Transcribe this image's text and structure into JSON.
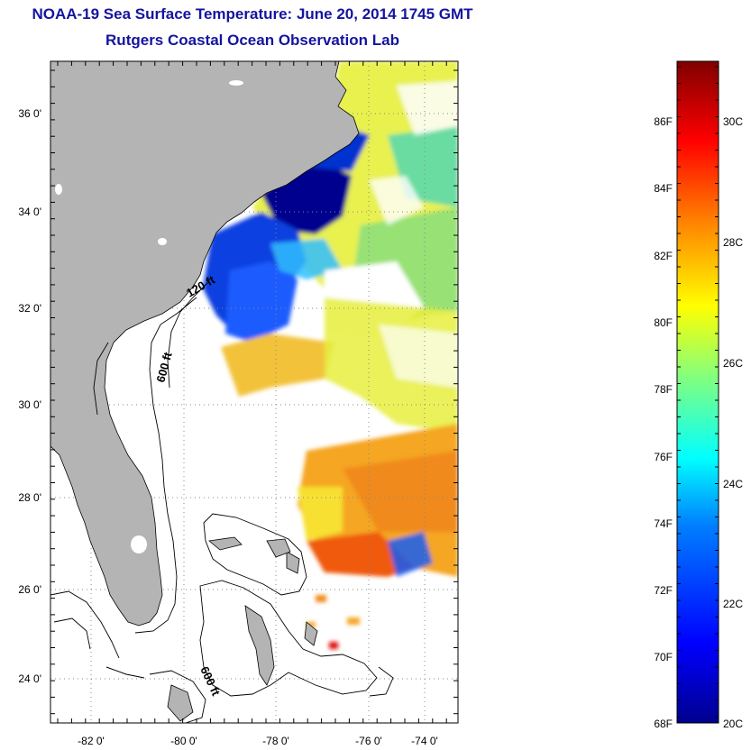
{
  "title": {
    "line1": "NOAA-19 Sea Surface Temperature:  June 20, 2014 1745 GMT",
    "line2": "Rutgers Coastal Ocean Observation Lab"
  },
  "map": {
    "lat_labels": [
      {
        "value": 36,
        "text": "36 0'"
      },
      {
        "value": 34,
        "text": "34 0'"
      },
      {
        "value": 32,
        "text": "32 0'"
      },
      {
        "value": 30,
        "text": "30 0'"
      },
      {
        "value": 28,
        "text": "28 0'"
      },
      {
        "value": 26,
        "text": "26 0'"
      },
      {
        "value": 24,
        "text": "24 0'"
      }
    ],
    "lon_labels": [
      {
        "value": -82,
        "text": "-82 0'"
      },
      {
        "value": -80,
        "text": "-80 0'"
      },
      {
        "value": -78,
        "text": "-78 0'"
      },
      {
        "value": -76,
        "text": "-76 0'"
      },
      {
        "value": -74,
        "text": "-74 0'"
      }
    ],
    "contour_labels": [
      {
        "text": "120 ft"
      },
      {
        "text": "600 ft"
      },
      {
        "text": "600 ft"
      }
    ],
    "land_color": "#b4b4b4"
  },
  "colorbar": {
    "fahrenheit_labels": [
      "86F",
      "84F",
      "82F",
      "80F",
      "78F",
      "76F",
      "74F",
      "72F",
      "70F",
      "68F"
    ],
    "celsius_labels": [
      "30C",
      "28C",
      "26C",
      "24C",
      "22C",
      "20C"
    ],
    "min_f": 68,
    "max_f": 87.6,
    "colors": [
      "#00008f",
      "#0000ff",
      "#0080ff",
      "#00ffff",
      "#80ff80",
      "#ffff00",
      "#ff8000",
      "#ff0000",
      "#800000"
    ]
  }
}
